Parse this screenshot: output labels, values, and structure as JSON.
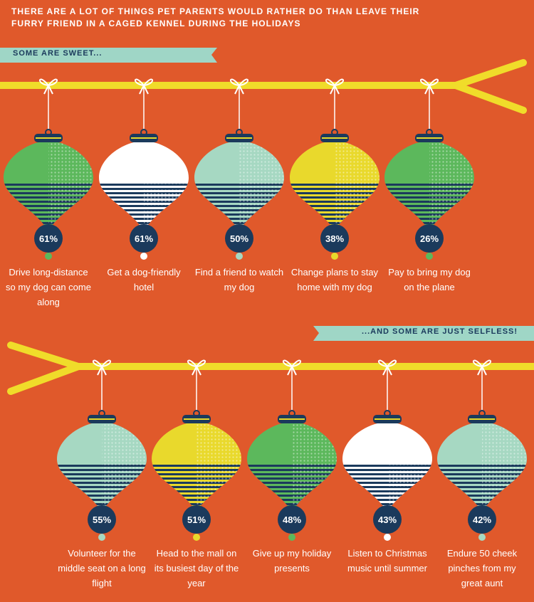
{
  "header": {
    "title": "THERE ARE A LOT OF THINGS PET PARENTS WOULD RATHER DO THAN LEAVE THEIR FURRY FRIEND IN A CAGED KENNEL DURING THE HOLIDAYS"
  },
  "sections": [
    {
      "banner": "SOME ARE SWEET...",
      "ornaments": [
        {
          "percent": "61%",
          "label": "Drive long-distance so my dog can come along",
          "color": "#5cb85c"
        },
        {
          "percent": "61%",
          "label": "Get a dog-friendly hotel",
          "color": "#ffffff"
        },
        {
          "percent": "50%",
          "label": "Find a friend to watch my dog",
          "color": "#a6d8c2"
        },
        {
          "percent": "38%",
          "label": "Change plans to stay home with my dog",
          "color": "#e9d92c"
        },
        {
          "percent": "26%",
          "label": "Pay to bring my dog on the plane",
          "color": "#5cb85c"
        }
      ]
    },
    {
      "banner": "...AND SOME ARE JUST SELFLESS!",
      "ornaments": [
        {
          "percent": "55%",
          "label": "Volunteer for the middle seat on a long flight",
          "color": "#a6d8c2"
        },
        {
          "percent": "51%",
          "label": "Head to the mall on its busiest day of the year",
          "color": "#e9d92c"
        },
        {
          "percent": "48%",
          "label": "Give up my holiday presents",
          "color": "#5cb85c"
        },
        {
          "percent": "43%",
          "label": "Listen to Christmas music until summer",
          "color": "#ffffff"
        },
        {
          "percent": "42%",
          "label": "Endure 50 cheek pinches from my great aunt",
          "color": "#a6d8c2"
        }
      ]
    }
  ]
}
